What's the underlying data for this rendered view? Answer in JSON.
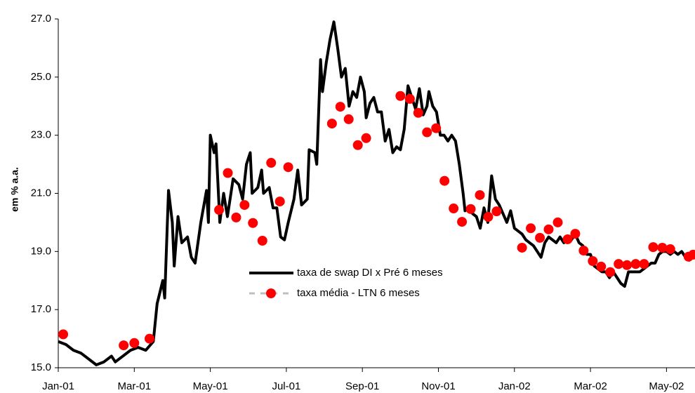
{
  "chart_data": {
    "type": "line",
    "y_label": "em % a.a.",
    "xlim": [
      0,
      16.75
    ],
    "xticks": [
      {
        "value": 0,
        "label": "Jan-01"
      },
      {
        "value": 2,
        "label": "Mar-01"
      },
      {
        "value": 4,
        "label": "May-01"
      },
      {
        "value": 6,
        "label": "Jul-01"
      },
      {
        "value": 8,
        "label": "Sep-01"
      },
      {
        "value": 10,
        "label": "Nov-01"
      },
      {
        "value": 12,
        "label": "Jan-02"
      },
      {
        "value": 14,
        "label": "Mar-02"
      },
      {
        "value": 16,
        "label": "May-02"
      }
    ],
    "ylim": [
      15,
      27
    ],
    "yticks": [
      {
        "value": 15,
        "label": "15.0"
      },
      {
        "value": 17,
        "label": "17.0"
      },
      {
        "value": 19,
        "label": "19.0"
      },
      {
        "value": 21,
        "label": "21.0"
      },
      {
        "value": 23,
        "label": "23.0"
      },
      {
        "value": 25,
        "label": "25.0"
      },
      {
        "value": 27,
        "label": "27.0"
      }
    ],
    "series": [
      {
        "name": "taxa de swap DI x Pré 6 meses",
        "color": "#000000",
        "style": "line",
        "x": [
          0,
          0.2,
          0.4,
          0.6,
          0.8,
          1.0,
          1.2,
          1.4,
          1.5,
          1.7,
          1.9,
          2.1,
          2.3,
          2.5,
          2.6,
          2.75,
          2.8,
          2.9,
          3.0,
          3.05,
          3.15,
          3.25,
          3.4,
          3.5,
          3.6,
          3.75,
          3.9,
          3.95,
          4.0,
          4.1,
          4.15,
          4.25,
          4.35,
          4.45,
          4.6,
          4.75,
          4.85,
          4.95,
          5.05,
          5.1,
          5.25,
          5.35,
          5.4,
          5.55,
          5.65,
          5.75,
          5.85,
          5.95,
          6.05,
          6.2,
          6.3,
          6.4,
          6.55,
          6.6,
          6.75,
          6.8,
          6.9,
          6.95,
          7.05,
          7.15,
          7.25,
          7.35,
          7.45,
          7.55,
          7.65,
          7.75,
          7.85,
          7.95,
          8.05,
          8.1,
          8.2,
          8.3,
          8.4,
          8.5,
          8.6,
          8.7,
          8.8,
          8.9,
          9.0,
          9.1,
          9.2,
          9.3,
          9.4,
          9.5,
          9.6,
          9.7,
          9.75,
          9.85,
          9.95,
          10.05,
          10.15,
          10.25,
          10.35,
          10.45,
          10.55,
          10.65,
          10.7,
          10.8,
          10.9,
          11.0,
          11.1,
          11.2,
          11.3,
          11.4,
          11.5,
          11.6,
          11.7,
          11.8,
          11.9,
          12.0,
          12.1,
          12.2,
          12.3,
          12.4,
          12.5,
          12.6,
          12.7,
          12.8,
          12.9,
          13.0,
          13.1,
          13.2,
          13.3,
          13.4,
          13.5,
          13.6,
          13.7,
          13.8,
          13.9,
          14.0,
          14.1,
          14.2,
          14.3,
          14.4,
          14.5,
          14.6,
          14.7,
          14.8,
          14.9,
          15.0,
          15.1,
          15.2,
          15.3,
          15.4,
          15.5,
          15.6,
          15.7,
          15.8,
          15.9,
          16.0,
          16.1,
          16.2,
          16.3,
          16.4,
          16.5,
          16.6,
          16.7
        ],
        "values": [
          15.9,
          15.8,
          15.6,
          15.5,
          15.3,
          15.1,
          15.2,
          15.4,
          15.2,
          15.4,
          15.6,
          15.7,
          15.6,
          15.9,
          17.2,
          18.0,
          17.4,
          21.1,
          20.0,
          18.5,
          20.2,
          19.3,
          19.5,
          18.8,
          18.6,
          20.0,
          21.1,
          20.0,
          23.0,
          22.4,
          22.7,
          20.0,
          21.0,
          20.2,
          21.5,
          21.3,
          20.8,
          22.0,
          22.4,
          21.0,
          21.2,
          21.8,
          21.0,
          21.2,
          20.5,
          20.5,
          19.5,
          19.4,
          20.0,
          20.8,
          21.8,
          20.6,
          20.8,
          22.5,
          22.4,
          22.0,
          25.6,
          24.5,
          25.5,
          26.3,
          26.9,
          26.0,
          25.0,
          25.3,
          24.0,
          24.5,
          24.3,
          25.0,
          24.5,
          23.6,
          24.1,
          24.3,
          23.8,
          23.8,
          22.8,
          23.2,
          22.4,
          22.6,
          22.5,
          23.2,
          24.7,
          24.3,
          23.9,
          24.6,
          23.7,
          24.0,
          24.5,
          24.0,
          23.8,
          23.0,
          23.0,
          22.8,
          23.0,
          22.8,
          22.0,
          21.0,
          20.4,
          20.5,
          20.3,
          20.2,
          19.8,
          20.5,
          20.0,
          21.6,
          20.8,
          20.6,
          20.3,
          20.0,
          20.4,
          19.8,
          19.7,
          19.6,
          19.4,
          19.3,
          19.2,
          19.0,
          18.8,
          19.3,
          19.5,
          19.4,
          19.3,
          19.5,
          19.3,
          19.5,
          19.4,
          19.6,
          19.3,
          19.2,
          18.9,
          18.9,
          18.5,
          18.4,
          18.3,
          18.3,
          18.1,
          18.3,
          18.1,
          17.9,
          17.8,
          18.3,
          18.3,
          18.3,
          18.3,
          18.4,
          18.5,
          18.6,
          18.6,
          18.9,
          19.0,
          19.0,
          18.9,
          19.0,
          18.9,
          19.0,
          18.8,
          18.7,
          18.9
        ]
      },
      {
        "name": "taxa média - LTN 6 meses",
        "color": "#ff0000",
        "style": "dots",
        "x": [
          0.13,
          1.72,
          2.0,
          2.4,
          4.23,
          4.46,
          4.68,
          4.9,
          5.12,
          5.37,
          5.6,
          5.83,
          6.05,
          7.2,
          7.42,
          7.64,
          7.88,
          8.1,
          9.0,
          9.25,
          9.47,
          9.7,
          9.94,
          10.16,
          10.4,
          10.62,
          10.85,
          11.09,
          11.31,
          11.53,
          12.2,
          12.43,
          12.67,
          12.9,
          13.14,
          13.4,
          13.6,
          13.82,
          14.06,
          14.28,
          14.52,
          14.74,
          14.96,
          15.19,
          15.41,
          15.65,
          15.89,
          16.1,
          16.58,
          16.7
        ],
        "values": [
          16.15,
          15.77,
          15.85,
          16.0,
          20.43,
          21.7,
          20.17,
          20.6,
          19.98,
          19.37,
          22.05,
          20.72,
          21.9,
          23.4,
          23.98,
          23.55,
          22.66,
          22.9,
          24.35,
          24.25,
          23.77,
          23.1,
          23.24,
          21.43,
          20.48,
          20.02,
          20.46,
          20.94,
          20.19,
          20.38,
          19.13,
          19.8,
          19.47,
          19.76,
          20.0,
          19.42,
          19.61,
          19.03,
          18.67,
          18.48,
          18.29,
          18.57,
          18.53,
          18.57,
          18.57,
          19.15,
          19.13,
          19.08,
          18.82,
          18.89
        ]
      }
    ]
  }
}
